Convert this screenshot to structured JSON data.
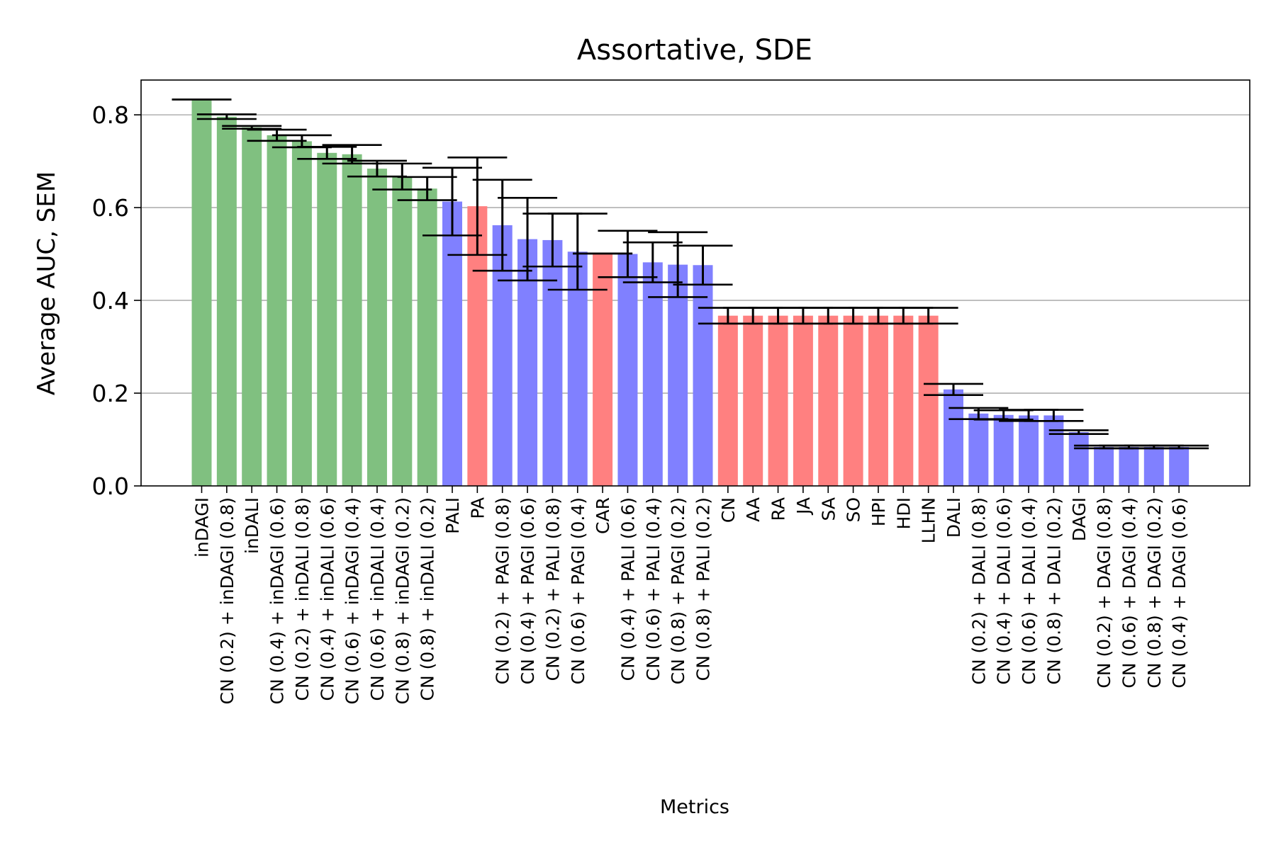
{
  "chart_data": {
    "type": "bar",
    "title": "Assortative, SDE",
    "xlabel": "Metrics",
    "ylabel": "Average AUC, SEM",
    "ylim": [
      0,
      0.875
    ],
    "yticks": [
      0.0,
      0.2,
      0.4,
      0.6,
      0.8
    ],
    "ytick_labels": [
      "0.0",
      "0.2",
      "0.4",
      "0.6",
      "0.8"
    ],
    "grid": "y",
    "colors": {
      "green": "#80c080",
      "blue": "#8080ff",
      "red": "#ff8080",
      "errorbar": "#000000",
      "grid": "#b0b0b0"
    },
    "bars": [
      {
        "label": "inDAGI",
        "value": 0.833,
        "err": 0.0,
        "color": "green"
      },
      {
        "label": "CN (0.2) + inDAGI (0.8)",
        "value": 0.796,
        "err": 0.005,
        "color": "green"
      },
      {
        "label": "inDALI",
        "value": 0.773,
        "err": 0.003,
        "color": "green"
      },
      {
        "label": "CN (0.4) + inDAGI (0.6)",
        "value": 0.756,
        "err": 0.012,
        "color": "green"
      },
      {
        "label": "CN (0.2) + inDALI (0.8)",
        "value": 0.743,
        "err": 0.013,
        "color": "green"
      },
      {
        "label": "CN (0.4) + inDALI (0.6)",
        "value": 0.718,
        "err": 0.013,
        "color": "green"
      },
      {
        "label": "CN (0.6) + inDAGI (0.4)",
        "value": 0.715,
        "err": 0.02,
        "color": "green"
      },
      {
        "label": "CN (0.6) + inDALI (0.4)",
        "value": 0.684,
        "err": 0.017,
        "color": "green"
      },
      {
        "label": "CN (0.8) + inDAGI (0.2)",
        "value": 0.667,
        "err": 0.028,
        "color": "green"
      },
      {
        "label": "CN (0.8) + inDALI (0.2)",
        "value": 0.641,
        "err": 0.025,
        "color": "green"
      },
      {
        "label": "PALI",
        "value": 0.613,
        "err": 0.073,
        "color": "blue"
      },
      {
        "label": "PA",
        "value": 0.603,
        "err": 0.105,
        "color": "red"
      },
      {
        "label": "CN (0.2) + PAGI (0.8)",
        "value": 0.562,
        "err": 0.098,
        "color": "blue"
      },
      {
        "label": "CN (0.4) + PAGI (0.6)",
        "value": 0.532,
        "err": 0.089,
        "color": "blue"
      },
      {
        "label": "CN (0.2) + PALI (0.8)",
        "value": 0.53,
        "err": 0.057,
        "color": "blue"
      },
      {
        "label": "CN (0.6) + PAGI (0.4)",
        "value": 0.505,
        "err": 0.082,
        "color": "blue"
      },
      {
        "label": "CAR",
        "value": 0.501,
        "err": 0.0,
        "color": "red"
      },
      {
        "label": "CN (0.4) + PALI (0.6)",
        "value": 0.5,
        "err": 0.05,
        "color": "blue"
      },
      {
        "label": "CN (0.6) + PALI (0.4)",
        "value": 0.482,
        "err": 0.043,
        "color": "blue"
      },
      {
        "label": "CN (0.8) + PAGI (0.2)",
        "value": 0.477,
        "err": 0.07,
        "color": "blue"
      },
      {
        "label": "CN (0.8) + PALI (0.2)",
        "value": 0.476,
        "err": 0.042,
        "color": "blue"
      },
      {
        "label": "CN",
        "value": 0.367,
        "err": 0.017,
        "color": "red"
      },
      {
        "label": "AA",
        "value": 0.367,
        "err": 0.017,
        "color": "red"
      },
      {
        "label": "RA",
        "value": 0.367,
        "err": 0.017,
        "color": "red"
      },
      {
        "label": "JA",
        "value": 0.367,
        "err": 0.017,
        "color": "red"
      },
      {
        "label": "SA",
        "value": 0.367,
        "err": 0.017,
        "color": "red"
      },
      {
        "label": "SO",
        "value": 0.367,
        "err": 0.017,
        "color": "red"
      },
      {
        "label": "HPI",
        "value": 0.367,
        "err": 0.017,
        "color": "red"
      },
      {
        "label": "HDI",
        "value": 0.367,
        "err": 0.017,
        "color": "red"
      },
      {
        "label": "LLHN",
        "value": 0.367,
        "err": 0.017,
        "color": "red"
      },
      {
        "label": "DALI",
        "value": 0.208,
        "err": 0.012,
        "color": "blue"
      },
      {
        "label": "CN (0.2) + DALI (0.8)",
        "value": 0.156,
        "err": 0.012,
        "color": "blue"
      },
      {
        "label": "CN (0.4) + DALI (0.6)",
        "value": 0.153,
        "err": 0.01,
        "color": "blue"
      },
      {
        "label": "CN (0.6) + DALI (0.4)",
        "value": 0.152,
        "err": 0.012,
        "color": "blue"
      },
      {
        "label": "CN (0.8) + DALI (0.2)",
        "value": 0.152,
        "err": 0.012,
        "color": "blue"
      },
      {
        "label": "DAGI",
        "value": 0.116,
        "err": 0.004,
        "color": "blue"
      },
      {
        "label": "CN (0.2) + DAGI (0.8)",
        "value": 0.084,
        "err": 0.003,
        "color": "blue"
      },
      {
        "label": "CN (0.6) + DAGI (0.4)",
        "value": 0.084,
        "err": 0.003,
        "color": "blue"
      },
      {
        "label": "CN (0.8) + DAGI (0.2)",
        "value": 0.084,
        "err": 0.003,
        "color": "blue"
      },
      {
        "label": "CN (0.4) + DAGI (0.6)",
        "value": 0.084,
        "err": 0.003,
        "color": "blue"
      }
    ]
  }
}
